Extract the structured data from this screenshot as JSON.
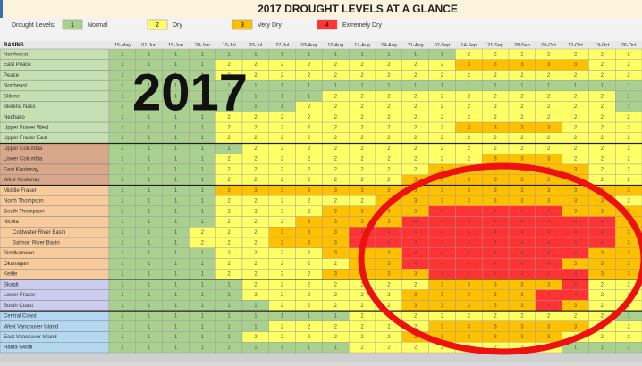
{
  "header": {
    "title": "2017 DROUGHT LEVELS AT A GLANCE",
    "legend_label": "Drought Levels:",
    "levels": [
      {
        "value": 1,
        "label": "Normal",
        "color": "#a9d08e"
      },
      {
        "value": 2,
        "label": "Dry",
        "color": "#ffff66"
      },
      {
        "value": 3,
        "label": "Very Dry",
        "color": "#ffc000"
      },
      {
        "value": 4,
        "label": "Extremely Dry",
        "color": "#ff3333"
      }
    ]
  },
  "overlay": {
    "year": "2017",
    "circle_color": "#ee1111"
  },
  "table": {
    "name_header": "BASINS",
    "columns": [
      "15-May",
      "01-Jun",
      "15-Jun",
      "28-Jun",
      "10-Jul",
      "20-Jul",
      "27-Jul",
      "03-Aug",
      "10-Aug",
      "17-Aug",
      "24-Aug",
      "31-Aug",
      "07-Sep",
      "14-Sep",
      "21-Sep",
      "28-Sep",
      "05-Oct",
      "12-Oct",
      "19-Oct",
      "26-Oct"
    ],
    "rows": [
      {
        "name": "Northwest",
        "color": "#c6e0b4",
        "values": [
          1,
          1,
          1,
          1,
          1,
          1,
          1,
          1,
          1,
          1,
          1,
          1,
          1,
          2,
          2,
          2,
          2,
          2,
          2,
          2
        ]
      },
      {
        "name": "East Peace",
        "color": "#c6e0b4",
        "values": [
          1,
          1,
          1,
          1,
          2,
          2,
          2,
          2,
          2,
          2,
          2,
          2,
          2,
          3,
          3,
          3,
          3,
          3,
          2,
          2
        ]
      },
      {
        "name": "Peace",
        "color": "#c6e0b4",
        "values": [
          1,
          1,
          1,
          1,
          2,
          2,
          2,
          2,
          2,
          2,
          2,
          2,
          2,
          2,
          2,
          2,
          2,
          2,
          2,
          2
        ]
      },
      {
        "name": "Northeast",
        "color": "#c6e0b4",
        "values": [
          1,
          1,
          1,
          1,
          1,
          1,
          1,
          1,
          1,
          1,
          1,
          1,
          1,
          1,
          1,
          1,
          1,
          1,
          1,
          1
        ]
      },
      {
        "name": "Stikine",
        "color": "#c6e0b4",
        "values": [
          1,
          1,
          1,
          1,
          1,
          1,
          1,
          1,
          2,
          2,
          2,
          2,
          2,
          2,
          2,
          2,
          2,
          2,
          2,
          1
        ]
      },
      {
        "name": "Skeena Nass",
        "color": "#c6e0b4",
        "values": [
          1,
          1,
          1,
          1,
          1,
          1,
          1,
          2,
          2,
          2,
          2,
          2,
          2,
          2,
          2,
          2,
          2,
          2,
          2,
          1
        ]
      },
      {
        "name": "Nechako",
        "color": "#c6e0b4",
        "values": [
          1,
          1,
          1,
          1,
          2,
          2,
          2,
          2,
          2,
          2,
          2,
          2,
          2,
          2,
          2,
          2,
          2,
          2,
          2,
          2
        ]
      },
      {
        "name": "Upper Fraser West",
        "color": "#c6e0b4",
        "values": [
          1,
          1,
          1,
          1,
          2,
          2,
          2,
          2,
          2,
          2,
          2,
          2,
          2,
          3,
          3,
          3,
          3,
          2,
          2,
          2
        ]
      },
      {
        "name": "Upper Fraser East",
        "color": "#c6e0b4",
        "values": [
          1,
          1,
          1,
          1,
          2,
          2,
          2,
          2,
          2,
          2,
          2,
          2,
          2,
          2,
          2,
          2,
          2,
          2,
          2,
          2
        ]
      },
      {
        "name": "Upper Columbia",
        "color": "#d9a88a",
        "values": [
          1,
          1,
          1,
          1,
          1,
          2,
          2,
          2,
          2,
          2,
          2,
          2,
          2,
          2,
          2,
          2,
          2,
          2,
          2,
          2
        ]
      },
      {
        "name": "Lower Columbia",
        "color": "#d9a88a",
        "values": [
          1,
          1,
          1,
          1,
          2,
          2,
          2,
          2,
          2,
          2,
          2,
          2,
          2,
          2,
          3,
          3,
          3,
          2,
          2,
          2
        ]
      },
      {
        "name": "East Kootenay",
        "color": "#d9a88a",
        "values": [
          1,
          1,
          1,
          1,
          2,
          2,
          2,
          2,
          2,
          2,
          2,
          2,
          3,
          3,
          3,
          3,
          3,
          3,
          2,
          2
        ]
      },
      {
        "name": "West Kootenay",
        "color": "#d9a88a",
        "values": [
          1,
          1,
          1,
          1,
          2,
          2,
          2,
          2,
          2,
          2,
          2,
          3,
          3,
          3,
          3,
          3,
          3,
          3,
          2,
          2
        ]
      },
      {
        "name": "Middle Fraser",
        "color": "#f8cb9c",
        "values": [
          1,
          1,
          1,
          1,
          3,
          3,
          3,
          3,
          3,
          3,
          3,
          3,
          3,
          3,
          3,
          3,
          3,
          3,
          3,
          3
        ]
      },
      {
        "name": "North Thompson",
        "color": "#f8cb9c",
        "values": [
          1,
          1,
          1,
          1,
          2,
          2,
          2,
          2,
          2,
          2,
          3,
          3,
          3,
          3,
          3,
          3,
          3,
          3,
          3,
          2
        ]
      },
      {
        "name": "South Thompson",
        "color": "#f8cb9c",
        "values": [
          1,
          1,
          1,
          1,
          2,
          2,
          2,
          2,
          3,
          3,
          3,
          3,
          4,
          4,
          4,
          4,
          4,
          3,
          3,
          3
        ]
      },
      {
        "name": "Nicola",
        "color": "#f8cb9c",
        "values": [
          1,
          1,
          1,
          1,
          2,
          2,
          2,
          3,
          3,
          3,
          3,
          4,
          4,
          4,
          4,
          4,
          4,
          4,
          4,
          3
        ]
      },
      {
        "name": "Coldwater River Basin",
        "color": "#f8cb9c",
        "values": [
          1,
          1,
          1,
          2,
          2,
          2,
          3,
          3,
          3,
          4,
          4,
          4,
          4,
          4,
          4,
          4,
          4,
          4,
          4,
          3
        ]
      },
      {
        "name": "Salmon River Basin",
        "color": "#f8cb9c",
        "values": [
          1,
          1,
          1,
          2,
          2,
          2,
          3,
          3,
          3,
          4,
          4,
          4,
          4,
          4,
          4,
          4,
          4,
          4,
          4,
          3
        ]
      },
      {
        "name": "Similkameen",
        "color": "#f8cb9c",
        "values": [
          1,
          1,
          1,
          1,
          2,
          2,
          2,
          2,
          3,
          3,
          3,
          4,
          4,
          4,
          4,
          4,
          4,
          4,
          3,
          3
        ]
      },
      {
        "name": "Okanagan",
        "color": "#f8cb9c",
        "values": [
          1,
          1,
          1,
          1,
          2,
          2,
          2,
          2,
          2,
          3,
          3,
          4,
          4,
          4,
          4,
          4,
          4,
          3,
          3,
          3
        ]
      },
      {
        "name": "Kettle",
        "color": "#f8cb9c",
        "values": [
          1,
          1,
          1,
          1,
          2,
          2,
          2,
          2,
          3,
          3,
          3,
          3,
          4,
          4,
          4,
          4,
          4,
          4,
          3,
          3
        ]
      },
      {
        "name": "Skagit",
        "color": "#ccccee",
        "values": [
          1,
          1,
          1,
          1,
          1,
          2,
          2,
          2,
          2,
          2,
          2,
          2,
          3,
          3,
          3,
          3,
          3,
          4,
          2,
          2
        ]
      },
      {
        "name": "Lower Fraser",
        "color": "#ccccee",
        "values": [
          1,
          1,
          1,
          1,
          1,
          2,
          2,
          2,
          2,
          2,
          2,
          3,
          3,
          3,
          3,
          3,
          4,
          4,
          2,
          2
        ]
      },
      {
        "name": "South Coast",
        "color": "#ccccee",
        "values": [
          1,
          1,
          1,
          1,
          1,
          1,
          2,
          2,
          2,
          2,
          2,
          3,
          3,
          3,
          3,
          3,
          4,
          3,
          2,
          2
        ]
      },
      {
        "name": "Central Coast",
        "color": "#b4d8f0",
        "values": [
          1,
          1,
          1,
          1,
          1,
          1,
          1,
          1,
          1,
          2,
          2,
          2,
          2,
          2,
          2,
          2,
          2,
          2,
          2,
          1
        ]
      },
      {
        "name": "West Vancouver Island",
        "color": "#b4d8f0",
        "values": [
          1,
          1,
          1,
          1,
          1,
          1,
          2,
          2,
          2,
          2,
          2,
          2,
          3,
          3,
          3,
          3,
          3,
          3,
          2,
          2
        ]
      },
      {
        "name": "East Vancouver Island",
        "color": "#b4d8f0",
        "values": [
          1,
          1,
          1,
          1,
          1,
          2,
          2,
          2,
          2,
          2,
          2,
          3,
          3,
          3,
          3,
          3,
          3,
          2,
          2,
          2
        ]
      },
      {
        "name": "Haida Gwaii",
        "color": "#b4d8f0",
        "values": [
          1,
          1,
          1,
          1,
          1,
          1,
          1,
          1,
          1,
          2,
          2,
          2,
          2,
          2,
          2,
          2,
          2,
          1,
          1,
          1
        ]
      }
    ]
  }
}
